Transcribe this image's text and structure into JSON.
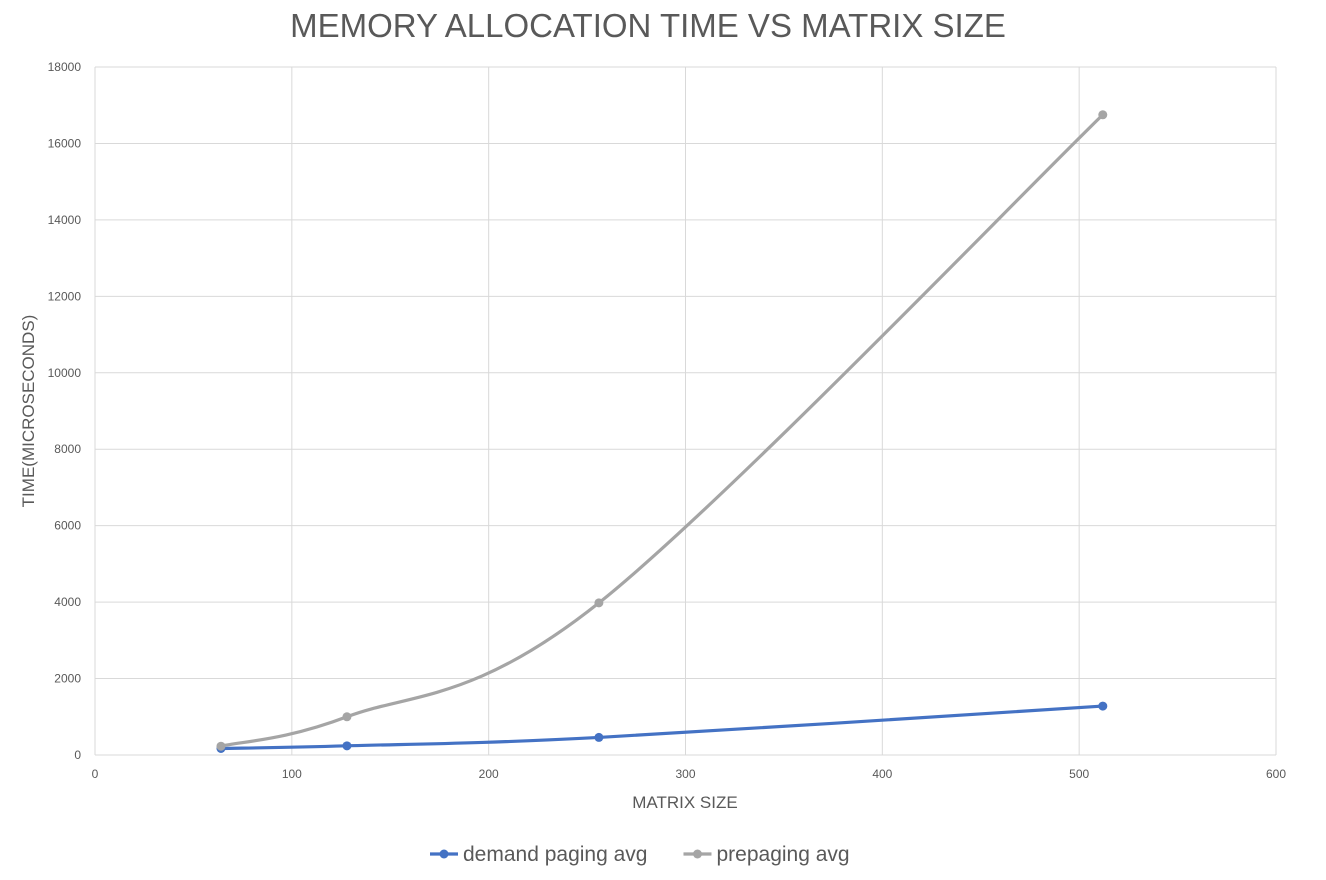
{
  "chart_data": {
    "type": "scatter",
    "title": "MEMORY ALLOCATION TIME VS MATRIX SIZE",
    "xlabel": "MATRIX SIZE",
    "ylabel": "TIME(MICROSECONDS)",
    "xlim": [
      0,
      600
    ],
    "ylim": [
      0,
      18000
    ],
    "xticks": [
      0,
      100,
      200,
      300,
      400,
      500,
      600
    ],
    "yticks": [
      0,
      2000,
      4000,
      6000,
      8000,
      10000,
      12000,
      14000,
      16000,
      18000
    ],
    "grid": true,
    "smooth": true,
    "legend_position": "bottom",
    "series": [
      {
        "name": "demand paging avg",
        "color": "#4472c4",
        "x": [
          64,
          128,
          256,
          512
        ],
        "y": [
          170,
          240,
          460,
          1280
        ]
      },
      {
        "name": "prepaging avg",
        "color": "#a5a5a5",
        "x": [
          64,
          128,
          256,
          512
        ],
        "y": [
          230,
          1000,
          3980,
          16750
        ]
      }
    ]
  }
}
